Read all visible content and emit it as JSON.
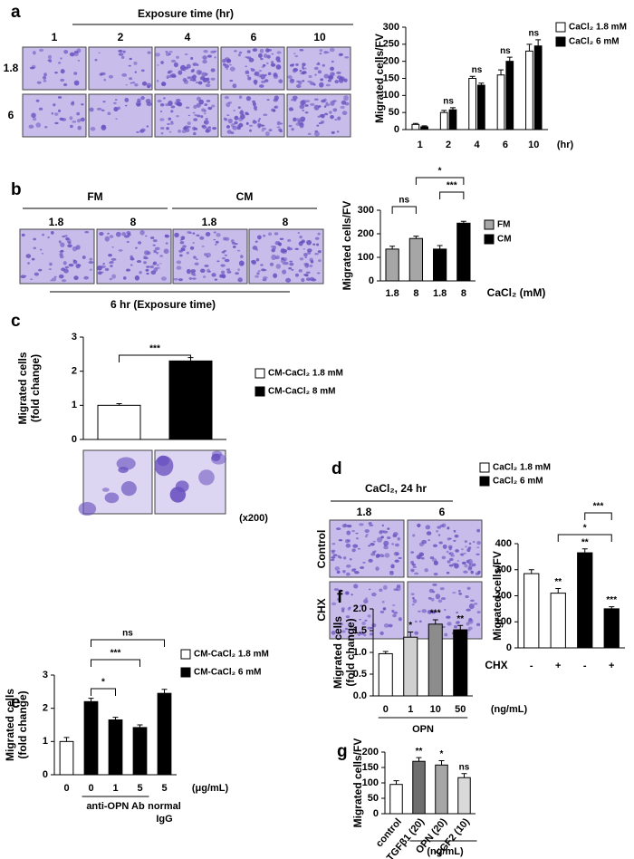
{
  "chart_data": [
    {
      "type": "bar",
      "panel": "a",
      "image_title": "Exposure time (hr)",
      "image_columns": [
        "1",
        "2",
        "4",
        "6",
        "10"
      ],
      "image_rows": [
        "1.8",
        "6"
      ],
      "ylabel": [
        "Migrated cells/FV"
      ],
      "categories": [
        "1",
        "2",
        "4",
        "6",
        "10"
      ],
      "x_unit": "(hr)",
      "ylim": [
        0,
        300
      ],
      "yticks": [
        0,
        50,
        100,
        150,
        200,
        250,
        300
      ],
      "series": [
        {
          "name": "CaCl₂ 1.8 mM",
          "color": "#ffffff",
          "values": [
            15,
            50,
            150,
            160,
            230
          ],
          "errors": [
            3,
            6,
            6,
            15,
            20
          ]
        },
        {
          "name": "CaCl₂ 6 mM",
          "color": "#000000",
          "values": [
            8,
            58,
            130,
            200,
            245
          ],
          "errors": [
            3,
            6,
            6,
            12,
            18
          ]
        }
      ],
      "annotations": [
        "ns",
        "ns",
        "ns",
        "ns"
      ]
    },
    {
      "type": "bar",
      "panel": "b",
      "image_groups": [
        "FM",
        "CM"
      ],
      "image_columns": [
        "1.8",
        "8",
        "1.8",
        "8"
      ],
      "image_caption": "6 hr (Exposure time)",
      "ylabel": [
        "Migrated cells/FV"
      ],
      "categories": [
        "1.8",
        "8",
        "1.8",
        "8"
      ],
      "xlabel": "CaCl₂ (mM)",
      "ylim": [
        0,
        300
      ],
      "yticks": [
        0,
        100,
        200,
        300
      ],
      "series": [
        {
          "name": "FM",
          "color": "#a6a6a6",
          "values": [
            135,
            180,
            null,
            null
          ],
          "errors": [
            12,
            10,
            null,
            null
          ]
        },
        {
          "name": "CM",
          "color": "#000000",
          "values": [
            null,
            null,
            135,
            245
          ],
          "errors": [
            null,
            null,
            15,
            8
          ]
        }
      ],
      "annotations": [
        "*",
        "ns",
        "***"
      ]
    },
    {
      "type": "bar",
      "panel": "c",
      "image_caption": "(x200)",
      "ylabel": [
        "Migrated cells",
        "(fold change)"
      ],
      "categories": [
        null,
        null
      ],
      "ylim": [
        0,
        3
      ],
      "yticks": [
        0,
        1,
        2,
        3
      ],
      "series": [
        {
          "name": "CM-CaCl₂ 1.8 mM",
          "color": "#ffffff",
          "values": [
            1.0,
            null
          ],
          "errors": [
            0.05,
            null
          ]
        },
        {
          "name": "CM-CaCl₂ 8 mM",
          "color": "#000000",
          "values": [
            null,
            2.3
          ],
          "errors": [
            null,
            0.1
          ]
        }
      ],
      "annotations": [
        "***"
      ]
    },
    {
      "type": "bar",
      "panel": "d",
      "image_title": "CaCl₂, 24 hr",
      "image_columns": [
        "1.8",
        "6"
      ],
      "image_rows": [
        "Control",
        "CHX"
      ],
      "ylabel": [
        "Migrated cells/FV"
      ],
      "categories": [
        "-",
        "+",
        "-",
        "+"
      ],
      "xlabel": "CHX",
      "ylim": [
        0,
        400
      ],
      "yticks": [
        0,
        100,
        200,
        300,
        400
      ],
      "series": [
        {
          "name": "CaCl₂ 1.8 mM",
          "color": "#ffffff",
          "values": [
            285,
            210,
            null,
            null
          ],
          "errors": [
            15,
            18,
            null,
            null
          ]
        },
        {
          "name": "CaCl₂ 6 mM",
          "color": "#000000",
          "values": [
            null,
            null,
            365,
            150
          ],
          "errors": [
            null,
            null,
            15,
            8
          ]
        }
      ],
      "annotations": [
        "**",
        "**",
        "***",
        "***",
        "*"
      ]
    },
    {
      "type": "bar",
      "panel": "e",
      "groups": [
        [
          "anti-OPN Ab"
        ],
        [
          "normal",
          "IgG"
        ]
      ],
      "ylabel": [
        "Migrated cells",
        "(fold change)"
      ],
      "categories": [
        "0",
        "0",
        "1",
        "5",
        "5"
      ],
      "x_unit": "(μg/mL)",
      "ylim": [
        0,
        3
      ],
      "yticks": [
        0,
        1,
        2,
        3
      ],
      "series": [
        {
          "name": "CM-CaCl₂ 1.8 mM",
          "color": "#ffffff",
          "values": [
            1.0,
            null,
            null,
            null,
            null
          ],
          "errors": [
            0.12,
            null,
            null,
            null,
            null
          ]
        },
        {
          "name": "CM-CaCl₂ 6 mM",
          "color": "#000000",
          "values": [
            null,
            2.2,
            1.65,
            1.42,
            2.45
          ],
          "errors": [
            null,
            0.1,
            0.08,
            0.08,
            0.12
          ]
        }
      ],
      "annotations": [
        "ns",
        "***",
        "*"
      ]
    },
    {
      "type": "bar",
      "panel": "f",
      "ylabel": [
        "Migrated cells",
        "(fold change)"
      ],
      "categories": [
        "0",
        "1",
        "10",
        "50"
      ],
      "x_unit": "(ng/mL)",
      "xlabel": "OPN",
      "ylim": [
        0,
        2
      ],
      "yticks": [
        {
          "value": 0,
          "label": "0.0"
        },
        {
          "value": 0.5,
          "label": "0.5"
        },
        {
          "value": 1,
          "label": "1.0"
        },
        {
          "value": 1.5,
          "label": "1.5"
        },
        {
          "value": 2,
          "label": "2.0"
        }
      ],
      "values": [
        0.97,
        1.35,
        1.65,
        1.52
      ],
      "errors": [
        0.05,
        0.12,
        0.1,
        0.1
      ],
      "colors": [
        "#ffffff",
        "#d0d0d0",
        "#8c8c8c",
        "#000000"
      ],
      "annotations": [
        "*",
        "***",
        "**"
      ]
    },
    {
      "type": "bar",
      "panel": "g",
      "ylabel": [
        "Migrated cells/FV"
      ],
      "categories": [
        "control",
        "TGFβ1 (20)",
        "OPN (20)",
        "FGF2 (10)"
      ],
      "x_unit": "(ng/mL)",
      "ylim": [
        0,
        200
      ],
      "yticks": [
        0,
        50,
        100,
        150,
        200
      ],
      "values": [
        95,
        170,
        158,
        117
      ],
      "errors": [
        12,
        12,
        14,
        13
      ],
      "colors": [
        "#ffffff",
        "#6e6e6e",
        "#a6a6a6",
        "#d9d9d9"
      ],
      "annotations": [
        "**",
        "*",
        "ns"
      ]
    }
  ]
}
